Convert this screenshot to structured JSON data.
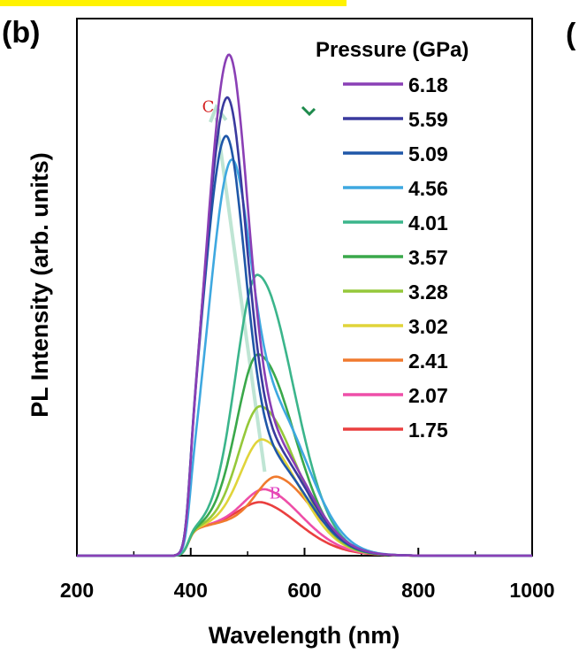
{
  "panel_label": "(b)",
  "next_panel_label": "(",
  "chart_data": {
    "type": "line",
    "xlabel": "Wavelength (nm)",
    "ylabel": "PL Intensity (arb. units)",
    "xlim": [
      200,
      1000
    ],
    "ylim": [
      0,
      1
    ],
    "xticks": [
      200,
      400,
      600,
      800,
      1000
    ],
    "grid": false,
    "legend": {
      "title": "Pressure (GPa)",
      "placement": "top-right"
    },
    "series": [
      {
        "name": "6.18",
        "color": "#8a3fb5",
        "peak_x": 465,
        "peak_y": 0.99,
        "shoulder": 0.32
      },
      {
        "name": "5.59",
        "color": "#3a3a9e",
        "peak_x": 462,
        "peak_y": 0.91,
        "shoulder": 0.32
      },
      {
        "name": "5.09",
        "color": "#1f57a8",
        "peak_x": 460,
        "peak_y": 0.84,
        "shoulder": 0.3
      },
      {
        "name": "4.56",
        "color": "#3ea8e0",
        "peak_x": 468,
        "peak_y": 0.72,
        "shoulder": 0.62
      },
      {
        "name": "4.01",
        "color": "#3bb58b",
        "peak_x": 518,
        "peak_y": 0.61,
        "shoulder": 0.0
      },
      {
        "name": "3.57",
        "color": "#3aa84a",
        "peak_x": 520,
        "peak_y": 0.44,
        "shoulder": 0.0
      },
      {
        "name": "3.28",
        "color": "#95c83a",
        "peak_x": 524,
        "peak_y": 0.33,
        "shoulder": 0.0
      },
      {
        "name": "3.02",
        "color": "#e0d43a",
        "peak_x": 528,
        "peak_y": 0.26,
        "shoulder": 0.0
      },
      {
        "name": "2.41",
        "color": "#f07a2e",
        "peak_x": 555,
        "peak_y": 0.19,
        "shoulder": 0.0
      },
      {
        "name": "2.07",
        "color": "#ee4fa8",
        "peak_x": 535,
        "peak_y": 0.155,
        "shoulder": 0.0
      },
      {
        "name": "1.75",
        "color": "#ea3f3f",
        "peak_x": 530,
        "peak_y": 0.125,
        "shoulder": 0.0
      }
    ],
    "arrow": {
      "from_x": 530,
      "from_y": 0.18,
      "to_x": 445,
      "to_y": 1.0,
      "color": "#a9dcc6"
    },
    "annotations": [
      {
        "text": "C",
        "x": 420,
        "y": 0.99,
        "color": "#d42020"
      },
      {
        "text": "B",
        "x": 538,
        "y": 0.16,
        "color": "#e040c0"
      }
    ],
    "checkmark": {
      "color": "#1e8a4c"
    }
  }
}
